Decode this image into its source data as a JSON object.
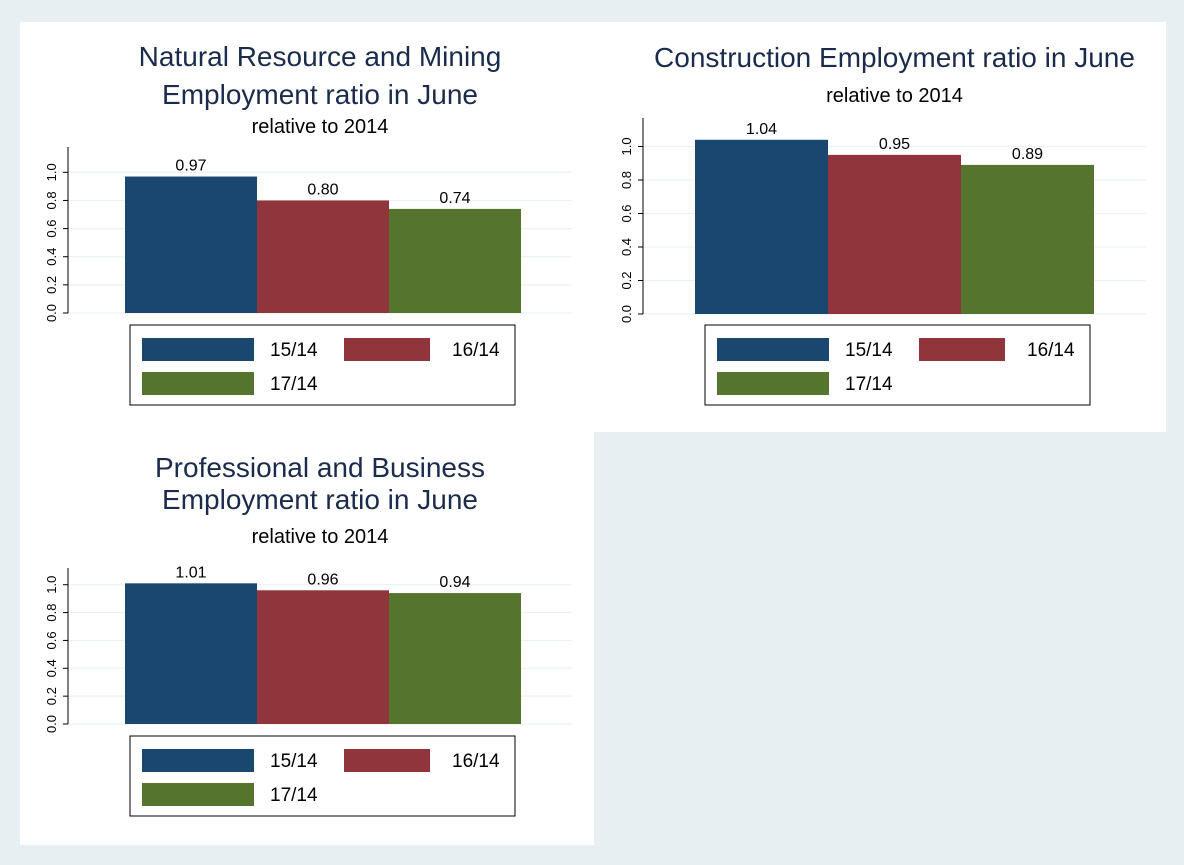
{
  "chart_data": [
    {
      "type": "bar",
      "title": [
        "Natural Resource and Mining",
        "Employment ratio in June"
      ],
      "subtitle": "relative to 2014",
      "series": [
        {
          "name": "15/14",
          "color": "#1a476f",
          "values": [
            0.97
          ],
          "value_labels": [
            "0.97"
          ]
        },
        {
          "name": "16/14",
          "color": "#90353b",
          "values": [
            0.8
          ],
          "value_labels": [
            "0.80"
          ]
        },
        {
          "name": "17/14",
          "color": "#55752f",
          "values": [
            0.74
          ],
          "value_labels": [
            "0.74"
          ]
        }
      ],
      "ylim": [
        0,
        1.18
      ],
      "yticks": [
        {
          "value": 0,
          "label": "0.0"
        },
        0.2,
        0.4,
        0.6,
        0.8,
        {
          "value": 1,
          "label": "1.0"
        }
      ],
      "grid": true
    },
    {
      "type": "bar",
      "title": [
        "Construction Employment ratio in June"
      ],
      "subtitle": "relative to 2014",
      "series": [
        {
          "name": "15/14",
          "color": "#1a476f",
          "values": [
            1.04
          ],
          "value_labels": [
            "1.04"
          ]
        },
        {
          "name": "16/14",
          "color": "#90353b",
          "values": [
            0.95
          ],
          "value_labels": [
            "0.95"
          ]
        },
        {
          "name": "17/14",
          "color": "#55752f",
          "values": [
            0.89
          ],
          "value_labels": [
            "0.89"
          ]
        }
      ],
      "ylim": [
        0,
        1.17
      ],
      "yticks": [
        {
          "value": 0,
          "label": "0.0"
        },
        0.2,
        0.4,
        0.6,
        0.8,
        {
          "value": 1,
          "label": "1.0"
        }
      ],
      "grid": true
    },
    {
      "type": "bar",
      "title": [
        "Professional and Business",
        "Employment ratio in June"
      ],
      "subtitle": "relative to 2014",
      "series": [
        {
          "name": "15/14",
          "color": "#1a476f",
          "values": [
            1.01
          ],
          "value_labels": [
            "1.01"
          ]
        },
        {
          "name": "16/14",
          "color": "#90353b",
          "values": [
            0.96
          ],
          "value_labels": [
            "0.96"
          ]
        },
        {
          "name": "17/14",
          "color": "#55752f",
          "values": [
            0.94
          ],
          "value_labels": [
            "0.94"
          ]
        }
      ],
      "ylim": [
        0,
        1.12
      ],
      "yticks": [
        {
          "value": 0,
          "label": "0.0"
        },
        0.2,
        0.4,
        0.6,
        0.8,
        {
          "value": 1,
          "label": "1.0"
        }
      ],
      "grid": true
    }
  ]
}
